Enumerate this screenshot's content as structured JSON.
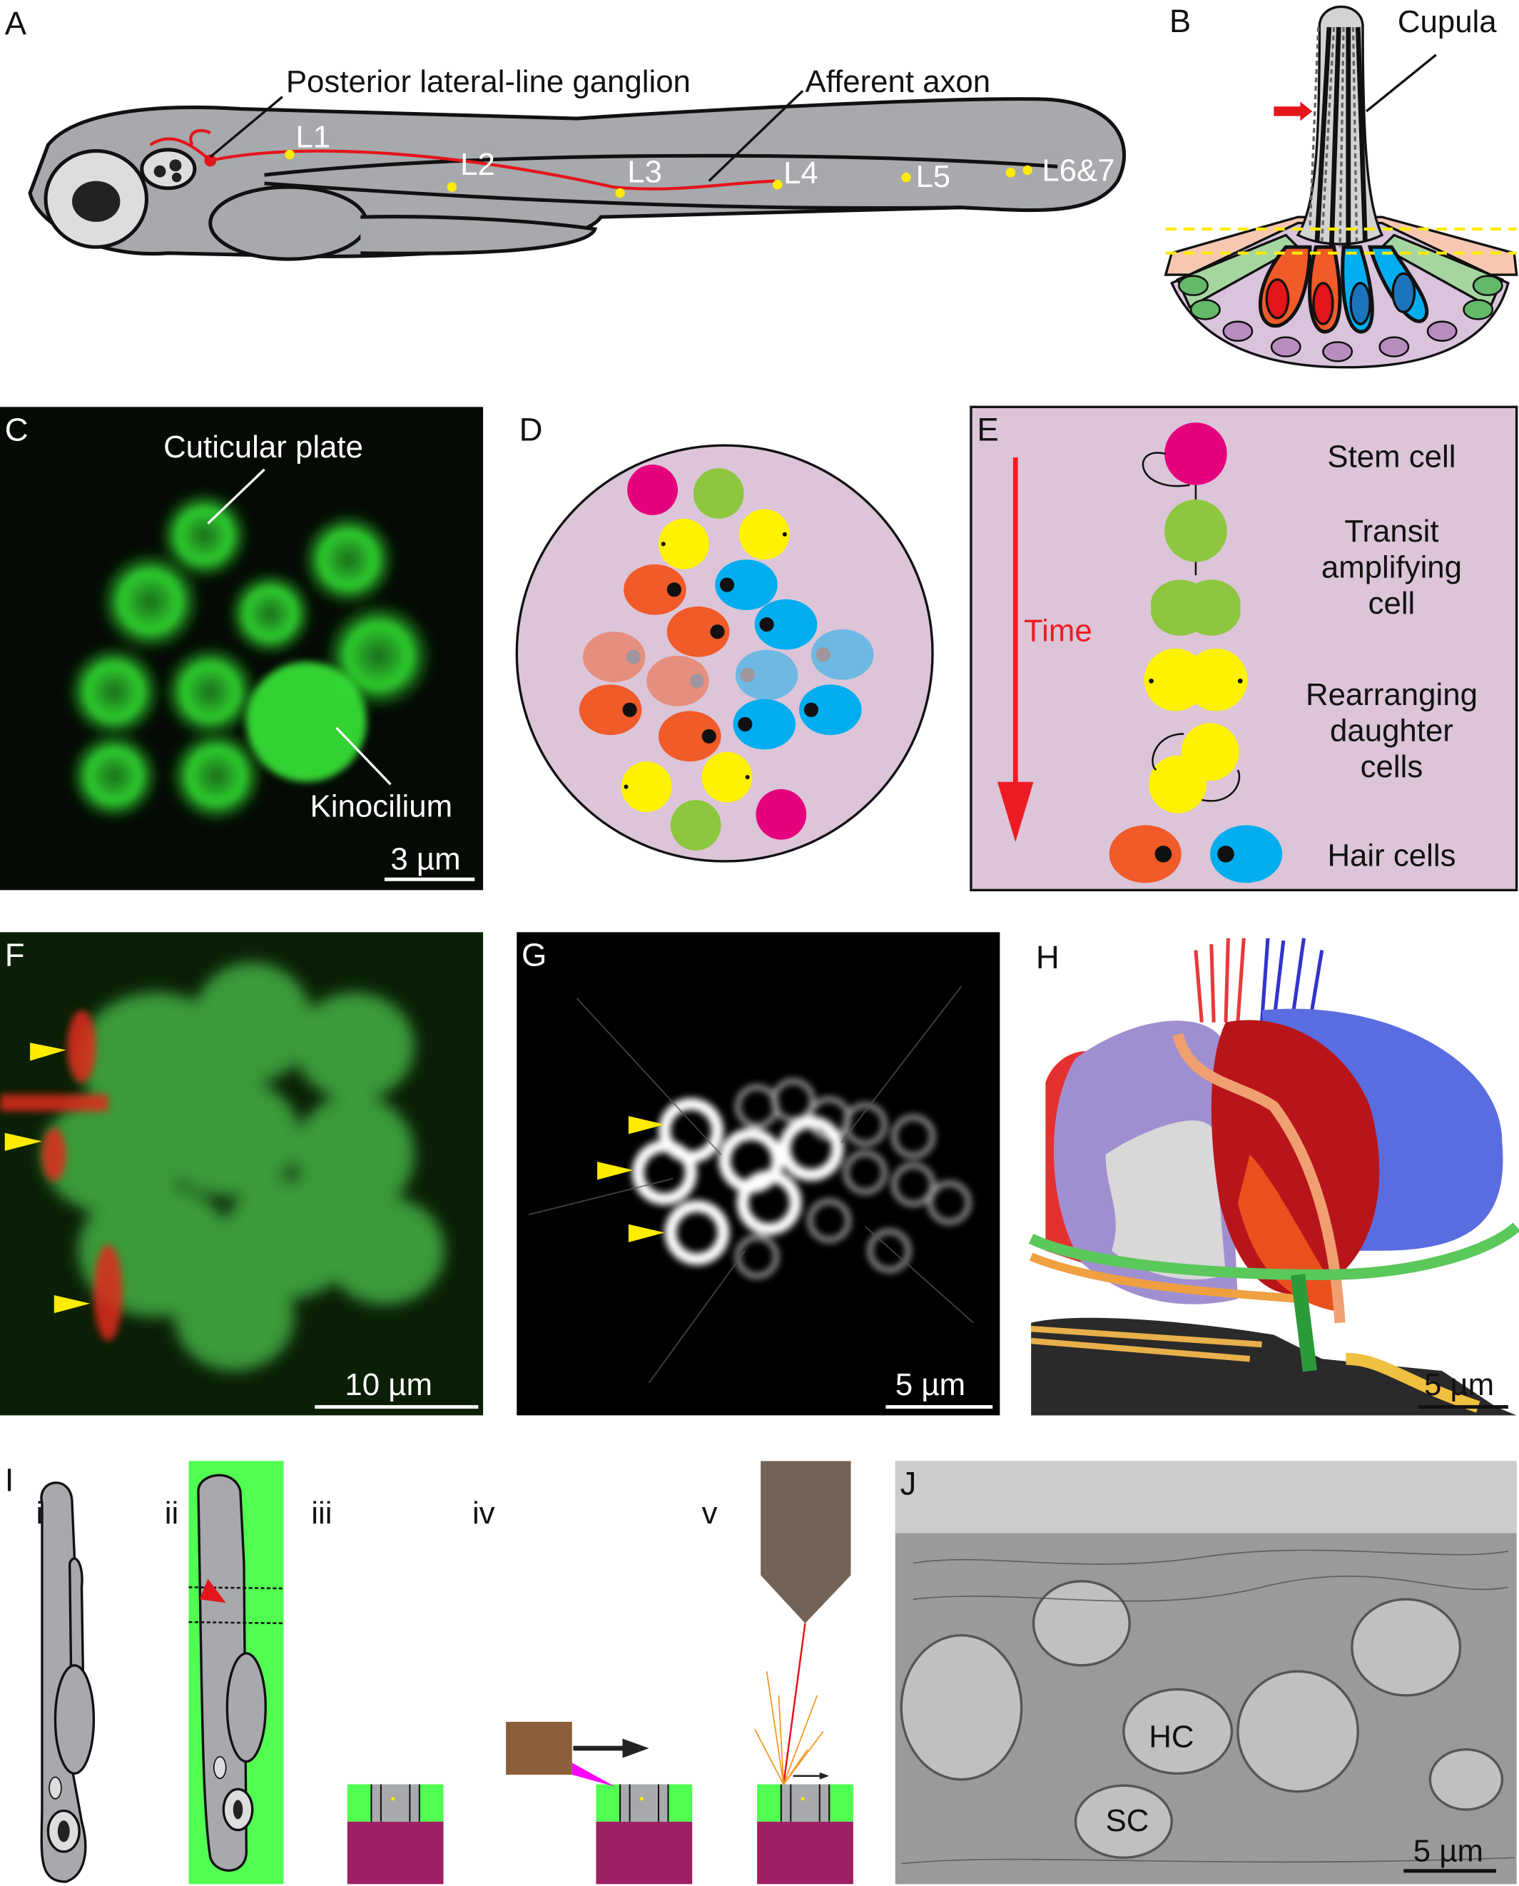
{
  "panels": {
    "A": {
      "letter": "A",
      "ganglion_label": "Posterior lateral-line ganglion",
      "axon_label": "Afferent axon",
      "neuromasts": [
        "L1",
        "L2",
        "L3",
        "L4",
        "L5",
        "L6&7"
      ]
    },
    "B": {
      "letter": "B",
      "cupula_label": "Cupula"
    },
    "C": {
      "letter": "C",
      "cuticular_label": "Cuticular plate",
      "kinocilium_label": "Kinocilium",
      "scale": "3 µm"
    },
    "D": {
      "letter": "D"
    },
    "E": {
      "letter": "E",
      "time_label": "Time",
      "stem": "Stem cell",
      "transit": [
        "Transit",
        "amplifying",
        "cell"
      ],
      "rearranging": [
        "Rearranging",
        "daughter",
        "cells"
      ],
      "hair": "Hair cells"
    },
    "F": {
      "letter": "F",
      "scale": "10 µm"
    },
    "G": {
      "letter": "G",
      "scale": "5 µm"
    },
    "H": {
      "letter": "H",
      "scale": "5 µm"
    },
    "I": {
      "letter": "I",
      "steps": [
        "i",
        "ii",
        "iii",
        "iv",
        "v"
      ]
    },
    "J": {
      "letter": "J",
      "hc": "HC",
      "sc": "SC",
      "scale": "5 µm"
    }
  },
  "colors": {
    "stem": "#e5007e",
    "transit": "#8dc63f",
    "daughter": "#fff200",
    "hair_orange": "#f15a29",
    "hair_blue": "#00aeef",
    "time_arrow": "#ed1c24",
    "background_lilac": "#dcc5d8"
  }
}
